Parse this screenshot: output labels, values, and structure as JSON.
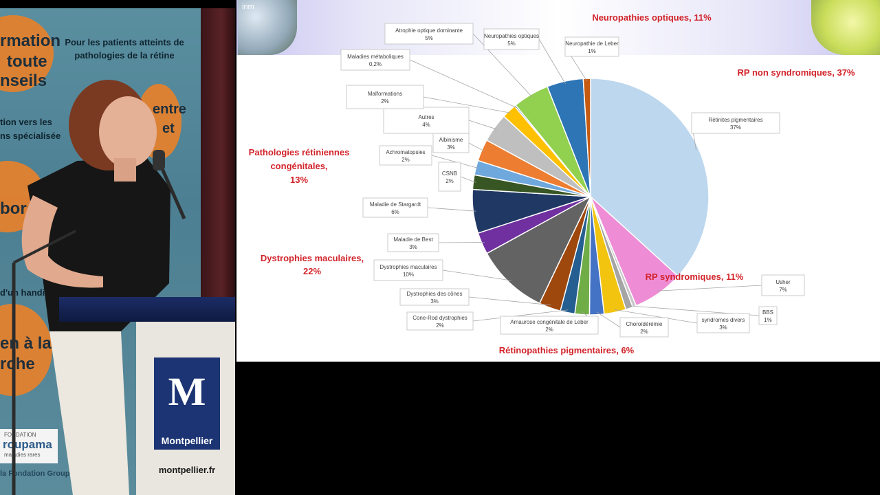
{
  "speaker_banner": {
    "lines": [
      "rmation",
      "toute",
      "nseils"
    ],
    "heading": "Pour les patients atteints de pathologies de la rétine",
    "side_lines": [
      "tion vers les",
      "ns spécialisée"
    ],
    "big_lines": [
      "boration",
      "entre",
      "et",
      "en à la",
      "rche"
    ],
    "bottom_text": "d'un handicap",
    "foundation": "FONDATION",
    "foundation_name": "roupama",
    "foundation_tag": "maladies rares",
    "footer": "la Fondation Groupa"
  },
  "podium": {
    "logo_letter": "M",
    "logo_name": "Montpellier",
    "url": "montpellier.fr"
  },
  "slide": {
    "logo_left_text": "inm",
    "colors": {
      "group_label": "#d2232a"
    }
  },
  "chart_data": {
    "type": "pie",
    "start": "top, clockwise",
    "slices": [
      {
        "name": "Rétinites pigmentaires",
        "label": "37%",
        "value": 37,
        "color": "#bdd7ee"
      },
      {
        "name": "Usher",
        "label": "7%",
        "value": 7,
        "color": "#ee8dd6"
      },
      {
        "name": "",
        "label": "",
        "value": 0.5,
        "color": "#c9c9c9"
      },
      {
        "name": "BBS",
        "label": "1%",
        "value": 1,
        "color": "#a5a5a5"
      },
      {
        "name": "syndromes divers",
        "label": "3%",
        "value": 3,
        "color": "#f2c40f"
      },
      {
        "name": "Choroïdérémie",
        "label": "2%",
        "value": 2,
        "color": "#4472c4"
      },
      {
        "name": "Amaurose congénitale de Leber",
        "label": "2%",
        "value": 2,
        "color": "#70ad47"
      },
      {
        "name": "Cone-Rod dystrophies",
        "label": "2%",
        "value": 2,
        "color": "#255e91"
      },
      {
        "name": "Dystrophies des cônes",
        "label": "3%",
        "value": 3,
        "color": "#9e480e"
      },
      {
        "name": "Dystrophies maculaires",
        "label": "10%",
        "value": 10,
        "color": "#636363"
      },
      {
        "name": "Maladie de Best",
        "label": "3%",
        "value": 3,
        "color": "#7030a0"
      },
      {
        "name": "Maladie de Stargardt",
        "label": "6%",
        "value": 6,
        "color": "#203864"
      },
      {
        "name": "CSNB",
        "label": "2%",
        "value": 2,
        "color": "#375623"
      },
      {
        "name": "Achromatopsies",
        "label": "2%",
        "value": 2,
        "color": "#6fa8dc"
      },
      {
        "name": "Albinisme",
        "label": "3%",
        "value": 3,
        "color": "#ed7d31"
      },
      {
        "name": "Autres",
        "label": "4%",
        "value": 4,
        "color": "#bfbfbf"
      },
      {
        "name": "Malformations",
        "label": "2%",
        "value": 2,
        "color": "#ffc000"
      },
      {
        "name": "Maladies métaboliques",
        "label": "0,2%",
        "value": 0.2,
        "color": "#4472c4"
      },
      {
        "name": "Atrophie optique dominante",
        "label": "5%",
        "value": 5,
        "color": "#92d050"
      },
      {
        "name": "Neuropathies optiques",
        "label": "5%",
        "value": 5,
        "color": "#2e75b6"
      },
      {
        "name": "Neuropathie de Leber",
        "label": "1%",
        "value": 1,
        "color": "#c55a11"
      }
    ],
    "groups": [
      {
        "label": "Neuropathies optiques, 11%"
      },
      {
        "label": "RP non syndromiques, 37%"
      },
      {
        "label": "Pathologies rétiniennes congénitales, 13%"
      },
      {
        "label": "Dystrophies maculaires, 22%"
      },
      {
        "label": "RP syndromiques, 11%"
      },
      {
        "label": "Rétinopathies pigmentaires, 6%"
      }
    ]
  }
}
